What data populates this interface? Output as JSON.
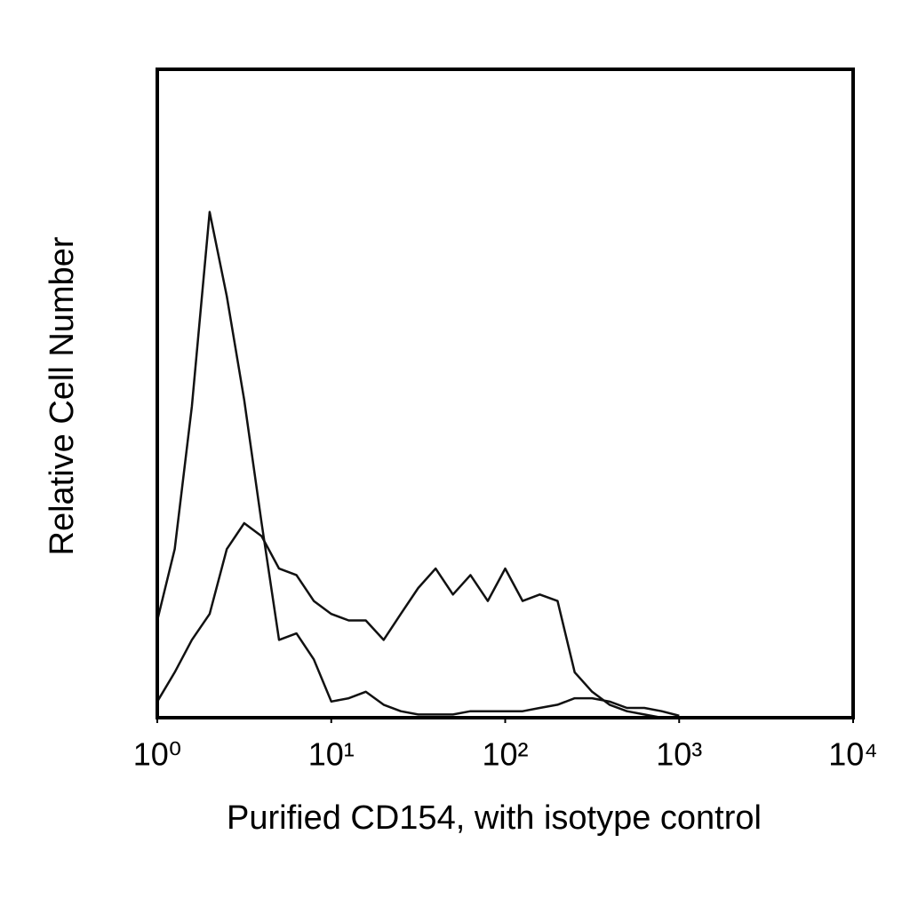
{
  "chart_data": {
    "type": "line",
    "x_label": "Purified CD154, with isotype control",
    "y_label": "Relative Cell Number",
    "xscale": "log",
    "xlim": [
      1,
      10000
    ],
    "ylim": [
      0,
      100
    ],
    "xticks": [
      {
        "value": 1,
        "label": "10⁰"
      },
      {
        "value": 10,
        "label": "10¹"
      },
      {
        "value": 100,
        "label": "10²"
      },
      {
        "value": 1000,
        "label": "10³"
      },
      {
        "value": 10000,
        "label": "10⁴"
      }
    ],
    "x": [
      1,
      1.26,
      1.58,
      2,
      2.51,
      3.16,
      3.98,
      5.01,
      6.31,
      7.94,
      10,
      12.6,
      15.8,
      20,
      25.1,
      31.6,
      39.8,
      50.1,
      63.1,
      79.4,
      100,
      126,
      158,
      200,
      251,
      316,
      398,
      501,
      631,
      794,
      1000
    ],
    "series": [
      {
        "color": "#111111",
        "values": [
          15,
          26,
          48,
          78,
          65,
          49,
          30,
          12,
          13,
          9,
          2.5,
          3,
          4,
          2,
          1,
          0.5,
          0.5,
          0.5,
          1,
          1,
          1,
          1,
          1.5,
          2,
          3,
          3,
          2.5,
          1.5,
          1.5,
          1,
          0.3
        ]
      },
      {
        "color": "#111111",
        "values": [
          2.5,
          7,
          12,
          16,
          26,
          30,
          28,
          23,
          22,
          18,
          16,
          15,
          15,
          12,
          16,
          20,
          23,
          19,
          22,
          18,
          23,
          18,
          19,
          18,
          7,
          4,
          2,
          1,
          0.5,
          0,
          0
        ]
      }
    ]
  }
}
